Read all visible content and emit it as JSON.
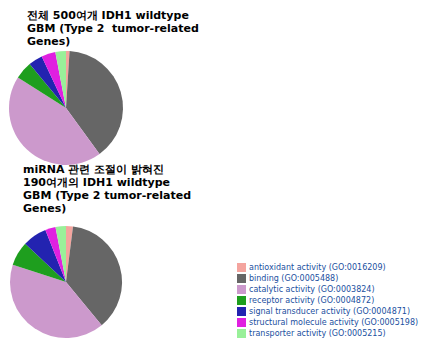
{
  "chart_data": [
    {
      "type": "pie",
      "title": "전체 500여개 IDH1 wildtype\nGBM (Type 2  tumor-related\nGenes)",
      "categories": [
        "antioxidant activity (GO:0016209)",
        "binding (GO:0005488)",
        "catalytic activity (GO:0003824)",
        "receptor activity (GO:0004872)",
        "signal transducer activity (GO:0004871)",
        "structural molecule activity (GO:0005198)",
        "transporter activity (GO:0005215)"
      ],
      "values": [
        1,
        39,
        44,
        5,
        4,
        4,
        3
      ],
      "colors": [
        "#f4a49e",
        "#666666",
        "#cc99cc",
        "#1e9e1e",
        "#2323b0",
        "#e020e0",
        "#99f099"
      ]
    },
    {
      "type": "pie",
      "title": "miRNA 관련 조절이 밝혀진\n190여개의 IDH1 wildtype\nGBM (Type 2 tumor-related\nGenes)",
      "categories": [
        "antioxidant activity (GO:0016209)",
        "binding (GO:0005488)",
        "catalytic activity (GO:0003824)",
        "receptor activity (GO:0004872)",
        "signal transducer activity (GO:0004871)",
        "structural molecule activity (GO:0005198)",
        "transporter activity (GO:0005215)"
      ],
      "values": [
        2,
        37,
        41,
        7,
        7,
        3,
        3
      ],
      "colors": [
        "#f4a49e",
        "#666666",
        "#cc99cc",
        "#1e9e1e",
        "#2323b0",
        "#e020e0",
        "#99f099"
      ],
      "legend": "lower right"
    }
  ]
}
